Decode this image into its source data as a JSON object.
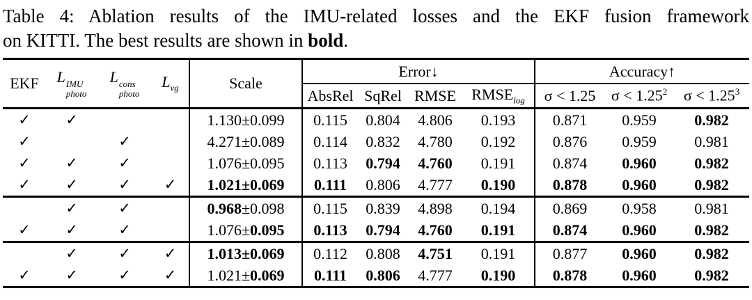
{
  "caption": {
    "line1": "Table 4: Ablation results of the IMU-related losses and the EKF fusion framework",
    "line2_prefix": "on KITTI. The best results are shown in ",
    "line2_bold": "bold",
    "line2_suffix": "."
  },
  "table": {
    "check_glyph": "✓",
    "headers": {
      "ekf": "EKF",
      "l_photo_imu": {
        "base": "L",
        "sup": "IMU",
        "sub": "photo"
      },
      "l_photo_cons": {
        "base": "L",
        "sup": "cons",
        "sub": "photo"
      },
      "l_vg": {
        "base": "L",
        "sub": "vg"
      },
      "scale": "Scale",
      "error_group": "Error↓",
      "accuracy_group": "Accuracy↑",
      "absrel": "AbsRel",
      "sqrel": "SqRel",
      "rmse": "RMSE",
      "rmse_log": {
        "base": "RMSE",
        "sub": "log"
      },
      "sigma_1": {
        "base": "σ < 1.25"
      },
      "sigma_2": {
        "base": "σ < 1.25",
        "sup": "2"
      },
      "sigma_3": {
        "base": "σ < 1.25",
        "sup": "3"
      }
    },
    "groups": [
      {
        "rows": [
          {
            "checks": [
              true,
              true,
              false,
              false
            ],
            "scale": [
              {
                "text": "1.130±0.099",
                "bold": false
              }
            ],
            "values": [
              {
                "text": "0.115",
                "bold": false
              },
              {
                "text": "0.804",
                "bold": false
              },
              {
                "text": "4.806",
                "bold": false
              },
              {
                "text": "0.193",
                "bold": false
              },
              {
                "text": "0.871",
                "bold": false
              },
              {
                "text": "0.959",
                "bold": false
              },
              {
                "text": "0.982",
                "bold": true
              }
            ]
          },
          {
            "checks": [
              true,
              false,
              true,
              false
            ],
            "scale": [
              {
                "text": "4.271±0.089",
                "bold": false
              }
            ],
            "values": [
              {
                "text": "0.114",
                "bold": false
              },
              {
                "text": "0.832",
                "bold": false
              },
              {
                "text": "4.780",
                "bold": false
              },
              {
                "text": "0.192",
                "bold": false
              },
              {
                "text": "0.876",
                "bold": false
              },
              {
                "text": "0.959",
                "bold": false
              },
              {
                "text": "0.981",
                "bold": false
              }
            ]
          },
          {
            "checks": [
              true,
              true,
              true,
              false
            ],
            "scale": [
              {
                "text": "1.076±0.095",
                "bold": false
              }
            ],
            "values": [
              {
                "text": "0.113",
                "bold": false
              },
              {
                "text": "0.794",
                "bold": true
              },
              {
                "text": "4.760",
                "bold": true
              },
              {
                "text": "0.191",
                "bold": false
              },
              {
                "text": "0.874",
                "bold": false
              },
              {
                "text": "0.960",
                "bold": true
              },
              {
                "text": "0.982",
                "bold": true
              }
            ]
          },
          {
            "checks": [
              true,
              true,
              true,
              true
            ],
            "scale": [
              {
                "text": "1.021±0.069",
                "bold": true
              }
            ],
            "values": [
              {
                "text": "0.111",
                "bold": true
              },
              {
                "text": "0.806",
                "bold": false
              },
              {
                "text": "4.777",
                "bold": false
              },
              {
                "text": "0.190",
                "bold": true
              },
              {
                "text": "0.878",
                "bold": true
              },
              {
                "text": "0.960",
                "bold": true
              },
              {
                "text": "0.982",
                "bold": true
              }
            ]
          }
        ]
      },
      {
        "rows": [
          {
            "checks": [
              false,
              true,
              true,
              false
            ],
            "scale": [
              {
                "text": "0.968",
                "bold": true
              },
              {
                "text": "±0.098",
                "bold": false
              }
            ],
            "values": [
              {
                "text": "0.115",
                "bold": false
              },
              {
                "text": "0.839",
                "bold": false
              },
              {
                "text": "4.898",
                "bold": false
              },
              {
                "text": "0.194",
                "bold": false
              },
              {
                "text": "0.869",
                "bold": false
              },
              {
                "text": "0.958",
                "bold": false
              },
              {
                "text": "0.981",
                "bold": false
              }
            ]
          },
          {
            "checks": [
              true,
              true,
              true,
              false
            ],
            "scale": [
              {
                "text": "1.076±",
                "bold": false
              },
              {
                "text": "0.095",
                "bold": true
              }
            ],
            "values": [
              {
                "text": "0.113",
                "bold": true
              },
              {
                "text": "0.794",
                "bold": true
              },
              {
                "text": "4.760",
                "bold": true
              },
              {
                "text": "0.191",
                "bold": true
              },
              {
                "text": "0.874",
                "bold": true
              },
              {
                "text": "0.960",
                "bold": true
              },
              {
                "text": "0.982",
                "bold": true
              }
            ]
          }
        ]
      },
      {
        "rows": [
          {
            "checks": [
              false,
              true,
              true,
              true
            ],
            "scale": [
              {
                "text": "1.013±0.069",
                "bold": true
              }
            ],
            "values": [
              {
                "text": "0.112",
                "bold": false
              },
              {
                "text": "0.808",
                "bold": false
              },
              {
                "text": "4.751",
                "bold": true
              },
              {
                "text": "0.191",
                "bold": false
              },
              {
                "text": "0.877",
                "bold": false
              },
              {
                "text": "0.960",
                "bold": true
              },
              {
                "text": "0.982",
                "bold": true
              }
            ]
          },
          {
            "checks": [
              true,
              true,
              true,
              true
            ],
            "scale": [
              {
                "text": "1.021±",
                "bold": false
              },
              {
                "text": "0.069",
                "bold": true
              }
            ],
            "values": [
              {
                "text": "0.111",
                "bold": true
              },
              {
                "text": "0.806",
                "bold": true
              },
              {
                "text": "4.777",
                "bold": false
              },
              {
                "text": "0.190",
                "bold": true
              },
              {
                "text": "0.878",
                "bold": true
              },
              {
                "text": "0.960",
                "bold": true
              },
              {
                "text": "0.982",
                "bold": true
              }
            ]
          }
        ]
      }
    ]
  }
}
